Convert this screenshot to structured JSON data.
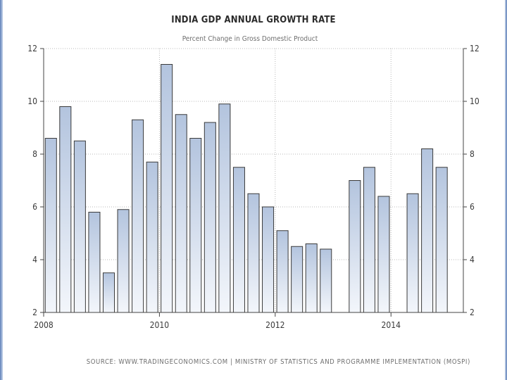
{
  "chart_data": {
    "type": "bar",
    "title": "INDIA GDP ANNUAL GROWTH RATE",
    "subtitle": "Percent Change in Gross Domestic Product",
    "source": "SOURCE:  WWW.TRADINGECONOMICS.COM  |  MINISTRY  OF  STATISTICS  AND  PROGRAMME  IMPLEMENTATION  (MOSPI)",
    "x_ticks": [
      "2008",
      "2010",
      "2012",
      "2014"
    ],
    "y_ticks": [
      "2",
      "4",
      "6",
      "8",
      "10",
      "12"
    ],
    "ylim": [
      2,
      12
    ],
    "grid": true,
    "colors": {
      "bar_top": "#b3c4de",
      "bar_bottom": "#f3f6fb",
      "bar_stroke": "#3a3a3a",
      "grid": "#b8b8b8",
      "axis": "#444444"
    },
    "bars": [
      {
        "x": "2008-Q1",
        "value": 8.6
      },
      {
        "x": "2008-Q2",
        "value": 9.8
      },
      {
        "x": "2008-Q3",
        "value": 8.5
      },
      {
        "x": "2008-Q4",
        "value": 5.8
      },
      {
        "x": "2009-Q1",
        "value": 3.5
      },
      {
        "x": "2009-Q2",
        "value": 5.9
      },
      {
        "x": "2009-Q3",
        "value": 9.3
      },
      {
        "x": "2009-Q4",
        "value": 7.7
      },
      {
        "x": "2010-Q1",
        "value": 11.4
      },
      {
        "x": "2010-Q2",
        "value": 9.5
      },
      {
        "x": "2010-Q3",
        "value": 8.6
      },
      {
        "x": "2010-Q4",
        "value": 9.2
      },
      {
        "x": "2011-Q1",
        "value": 9.9
      },
      {
        "x": "2011-Q2",
        "value": 7.5
      },
      {
        "x": "2011-Q3",
        "value": 6.5
      },
      {
        "x": "2011-Q4",
        "value": 6.0
      },
      {
        "x": "2012-Q1",
        "value": 5.1
      },
      {
        "x": "2012-Q2",
        "value": 4.5
      },
      {
        "x": "2012-Q3",
        "value": 4.6
      },
      {
        "x": "2012-Q4",
        "value": 4.4
      },
      {
        "x": "2013-Q2",
        "value": 7.0
      },
      {
        "x": "2013-Q3",
        "value": 7.5
      },
      {
        "x": "2013-Q4",
        "value": 6.4
      },
      {
        "x": "2014-Q2",
        "value": 6.5
      },
      {
        "x": "2014-Q3",
        "value": 8.2
      },
      {
        "x": "2014-Q4",
        "value": 7.5
      }
    ]
  }
}
